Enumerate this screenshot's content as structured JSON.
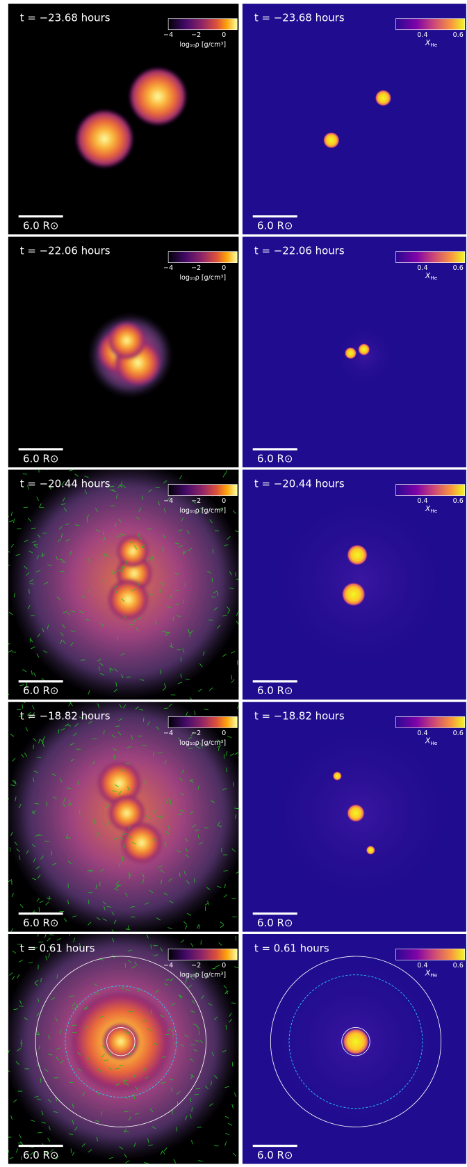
{
  "rows": [
    {
      "time": "t = −23.68 hours"
    },
    {
      "time": "t = −22.06 hours"
    },
    {
      "time": "t = −20.44 hours"
    },
    {
      "time": "t = −18.82 hours"
    },
    {
      "time": "t = 0.61 hours"
    }
  ],
  "density_colorbar": {
    "ticks": [
      "−4",
      "−2",
      "0"
    ],
    "label": "log₁₀ρ [g/cm³]"
  },
  "helium_colorbar": {
    "ticks": [
      "0.4",
      "0.6"
    ],
    "label": {
      "symbol": "X",
      "subscript": "He"
    }
  },
  "scale_bar": "6.0 R⊙"
}
